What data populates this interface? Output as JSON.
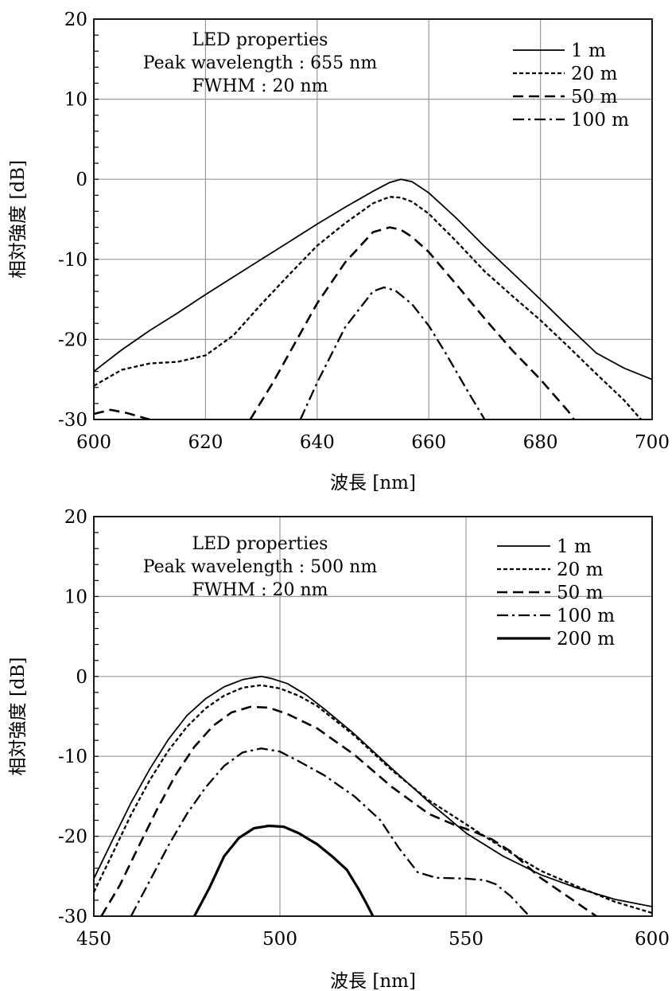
{
  "chart_data": [
    {
      "type": "line",
      "title": "",
      "xlabel": "波長 [nm]",
      "ylabel": "相対強度 [dB]",
      "xlim": [
        600,
        700
      ],
      "ylim": [
        -30,
        20
      ],
      "xticks": [
        "600",
        "620",
        "640",
        "660",
        "680",
        "700"
      ],
      "yticks": [
        "20",
        "10",
        "0",
        "-10",
        "-20",
        "-30"
      ],
      "grid": true,
      "legend_position": "top-right",
      "annotation": [
        "LED properties",
        "Peak wavelength : 655 nm",
        "FWHM : 20 nm"
      ],
      "series": [
        {
          "name": "1 m",
          "style": "solid-thin",
          "points": [
            [
              600,
              -24
            ],
            [
              605,
              -21.3
            ],
            [
              610,
              -18.9
            ],
            [
              615,
              -16.7
            ],
            [
              620,
              -14.4
            ],
            [
              625,
              -12.2
            ],
            [
              630,
              -10
            ],
            [
              635,
              -7.8
            ],
            [
              640,
              -5.6
            ],
            [
              645,
              -3.5
            ],
            [
              650,
              -1.5
            ],
            [
              653,
              -0.4
            ],
            [
              655,
              0
            ],
            [
              657,
              -0.3
            ],
            [
              660,
              -1.7
            ],
            [
              665,
              -4.9
            ],
            [
              670,
              -8.4
            ],
            [
              675,
              -11.7
            ],
            [
              680,
              -15
            ],
            [
              685,
              -18.4
            ],
            [
              690,
              -21.7
            ],
            [
              695,
              -23.6
            ],
            [
              700,
              -25
            ]
          ]
        },
        {
          "name": "20 m",
          "style": "dotted",
          "points": [
            [
              600,
              -25.8
            ],
            [
              605,
              -23.8
            ],
            [
              610,
              -23
            ],
            [
              615,
              -22.8
            ],
            [
              620,
              -22
            ],
            [
              625,
              -19.5
            ],
            [
              630,
              -15.6
            ],
            [
              635,
              -11.9
            ],
            [
              640,
              -8.3
            ],
            [
              645,
              -5.5
            ],
            [
              650,
              -3
            ],
            [
              653,
              -2.2
            ],
            [
              655,
              -2.3
            ],
            [
              657,
              -2.8
            ],
            [
              660,
              -4.3
            ],
            [
              665,
              -7.8
            ],
            [
              670,
              -11.5
            ],
            [
              675,
              -14.6
            ],
            [
              680,
              -17.6
            ],
            [
              685,
              -20.9
            ],
            [
              690,
              -24.3
            ],
            [
              695,
              -27.6
            ],
            [
              698,
              -30
            ]
          ]
        },
        {
          "name": "50 m",
          "style": "dashed",
          "points": [
            [
              600,
              -29.3
            ],
            [
              603,
              -28.8
            ],
            [
              606,
              -29.2
            ],
            [
              610,
              -30
            ],
            [
              null,
              null
            ],
            [
              628,
              -30
            ],
            [
              632,
              -25.5
            ],
            [
              636,
              -20.5
            ],
            [
              640,
              -15.5
            ],
            [
              645,
              -10.4
            ],
            [
              650,
              -6.6
            ],
            [
              653,
              -6
            ],
            [
              655,
              -6.3
            ],
            [
              657,
              -7.2
            ],
            [
              660,
              -9.1
            ],
            [
              665,
              -13.2
            ],
            [
              670,
              -17.4
            ],
            [
              675,
              -21.4
            ],
            [
              680,
              -25
            ],
            [
              685,
              -29
            ],
            [
              686,
              -30
            ]
          ]
        },
        {
          "name": "100 m",
          "style": "dashdot",
          "points": [
            [
              637,
              -30
            ],
            [
              640,
              -25.4
            ],
            [
              645,
              -18.5
            ],
            [
              650,
              -14
            ],
            [
              652,
              -13.5
            ],
            [
              654,
              -13.9
            ],
            [
              657,
              -15.6
            ],
            [
              660,
              -18.3
            ],
            [
              663,
              -21.7
            ],
            [
              667,
              -26.5
            ],
            [
              670,
              -30
            ]
          ]
        }
      ]
    },
    {
      "type": "line",
      "title": "",
      "xlabel": "波長 [nm]",
      "ylabel": "相対強度 [dB]",
      "xlim": [
        450,
        600
      ],
      "ylim": [
        -30,
        20
      ],
      "xticks": [
        "450",
        "500",
        "550",
        "600"
      ],
      "yticks": [
        "20",
        "10",
        "0",
        "-10",
        "-20",
        "-30"
      ],
      "grid": true,
      "legend_position": "top-right",
      "annotation": [
        "LED properties",
        "Peak wavelength : 500 nm",
        "FWHM : 20 nm"
      ],
      "series": [
        {
          "name": "1 m",
          "style": "solid-thin",
          "points": [
            [
              450,
              -25.3
            ],
            [
              455,
              -20.5
            ],
            [
              460,
              -15.8
            ],
            [
              465,
              -11.6
            ],
            [
              470,
              -7.9
            ],
            [
              475,
              -4.9
            ],
            [
              480,
              -2.8
            ],
            [
              485,
              -1.3
            ],
            [
              490,
              -0.4
            ],
            [
              495,
              0
            ],
            [
              498,
              -0.3
            ],
            [
              502,
              -0.9
            ],
            [
              507,
              -2.3
            ],
            [
              512,
              -4.1
            ],
            [
              520,
              -7.2
            ],
            [
              530,
              -11.5
            ],
            [
              540,
              -15.7
            ],
            [
              550,
              -19.6
            ],
            [
              560,
              -22.5
            ],
            [
              570,
              -24.8
            ],
            [
              580,
              -26.5
            ],
            [
              590,
              -27.9
            ],
            [
              600,
              -28.8
            ]
          ]
        },
        {
          "name": "20 m",
          "style": "dotted",
          "points": [
            [
              450,
              -27
            ],
            [
              455,
              -22.2
            ],
            [
              460,
              -17.3
            ],
            [
              465,
              -13
            ],
            [
              470,
              -9.3
            ],
            [
              475,
              -6.3
            ],
            [
              480,
              -4
            ],
            [
              485,
              -2.4
            ],
            [
              490,
              -1.4
            ],
            [
              495,
              -1.1
            ],
            [
              500,
              -1.5
            ],
            [
              505,
              -2.4
            ],
            [
              510,
              -3.7
            ],
            [
              520,
              -7.4
            ],
            [
              530,
              -11.7
            ],
            [
              540,
              -15.5
            ],
            [
              550,
              -18.5
            ],
            [
              560,
              -21.5
            ],
            [
              570,
              -24.3
            ],
            [
              580,
              -26.3
            ],
            [
              590,
              -28.2
            ],
            [
              600,
              -29.6
            ]
          ]
        },
        {
          "name": "50 m",
          "style": "dashed",
          "points": [
            [
              452,
              -30
            ],
            [
              457,
              -26.1
            ],
            [
              462,
              -21.3
            ],
            [
              467,
              -16.6
            ],
            [
              472,
              -12.3
            ],
            [
              477,
              -8.8
            ],
            [
              482,
              -6.2
            ],
            [
              487,
              -4.5
            ],
            [
              492,
              -3.8
            ],
            [
              497,
              -3.9
            ],
            [
              502,
              -4.7
            ],
            [
              510,
              -6.5
            ],
            [
              520,
              -9.8
            ],
            [
              530,
              -13.8
            ],
            [
              540,
              -17.2
            ],
            [
              547,
              -18.6
            ],
            [
              552,
              -19.4
            ],
            [
              557,
              -20.4
            ],
            [
              562,
              -21.9
            ],
            [
              570,
              -25.2
            ],
            [
              580,
              -28.4
            ],
            [
              585,
              -30
            ]
          ]
        },
        {
          "name": "100 m",
          "style": "dashdot",
          "points": [
            [
              460,
              -30
            ],
            [
              465,
              -25.6
            ],
            [
              470,
              -21.2
            ],
            [
              475,
              -17.2
            ],
            [
              480,
              -13.9
            ],
            [
              485,
              -11.2
            ],
            [
              490,
              -9.5
            ],
            [
              495,
              -9
            ],
            [
              500,
              -9.4
            ],
            [
              505,
              -10.6
            ],
            [
              512,
              -12.4
            ],
            [
              520,
              -15
            ],
            [
              527,
              -18
            ],
            [
              532,
              -21.5
            ],
            [
              537,
              -24.5
            ],
            [
              542,
              -25.2
            ],
            [
              550,
              -25.3
            ],
            [
              555,
              -25.5
            ],
            [
              558,
              -26
            ],
            [
              562,
              -27.5
            ],
            [
              567,
              -30
            ]
          ]
        },
        {
          "name": "200 m",
          "style": "solid-thick",
          "points": [
            [
              477,
              -30
            ],
            [
              481,
              -26.5
            ],
            [
              485,
              -22.5
            ],
            [
              489,
              -20.2
            ],
            [
              493,
              -19
            ],
            [
              497,
              -18.7
            ],
            [
              501,
              -18.8
            ],
            [
              505,
              -19.6
            ],
            [
              510,
              -21
            ],
            [
              514,
              -22.5
            ],
            [
              518,
              -24.2
            ],
            [
              521,
              -26.5
            ],
            [
              523,
              -28.2
            ],
            [
              525,
              -30
            ]
          ]
        }
      ]
    }
  ]
}
